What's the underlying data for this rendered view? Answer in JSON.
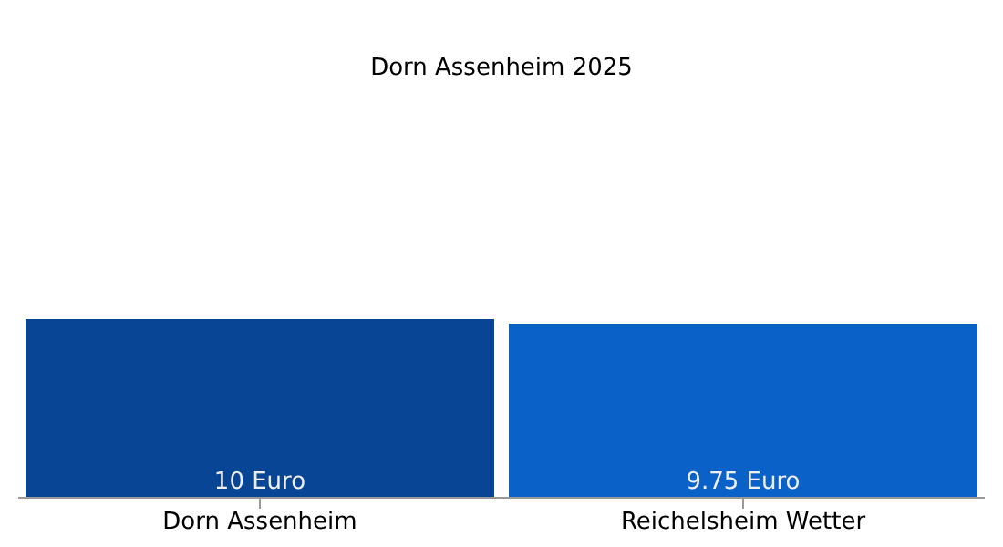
{
  "chart_data": {
    "type": "bar",
    "title": "Dorn Assenheim 2025",
    "categories": [
      "Dorn Assenheim",
      "Reichelsheim Wetter"
    ],
    "values": [
      10,
      9.75
    ],
    "colors": [
      "#084594",
      "#0a62c9"
    ],
    "value_labels": [
      "10 Euro",
      "9.75 Euro"
    ],
    "tick_labels": "x"
  }
}
